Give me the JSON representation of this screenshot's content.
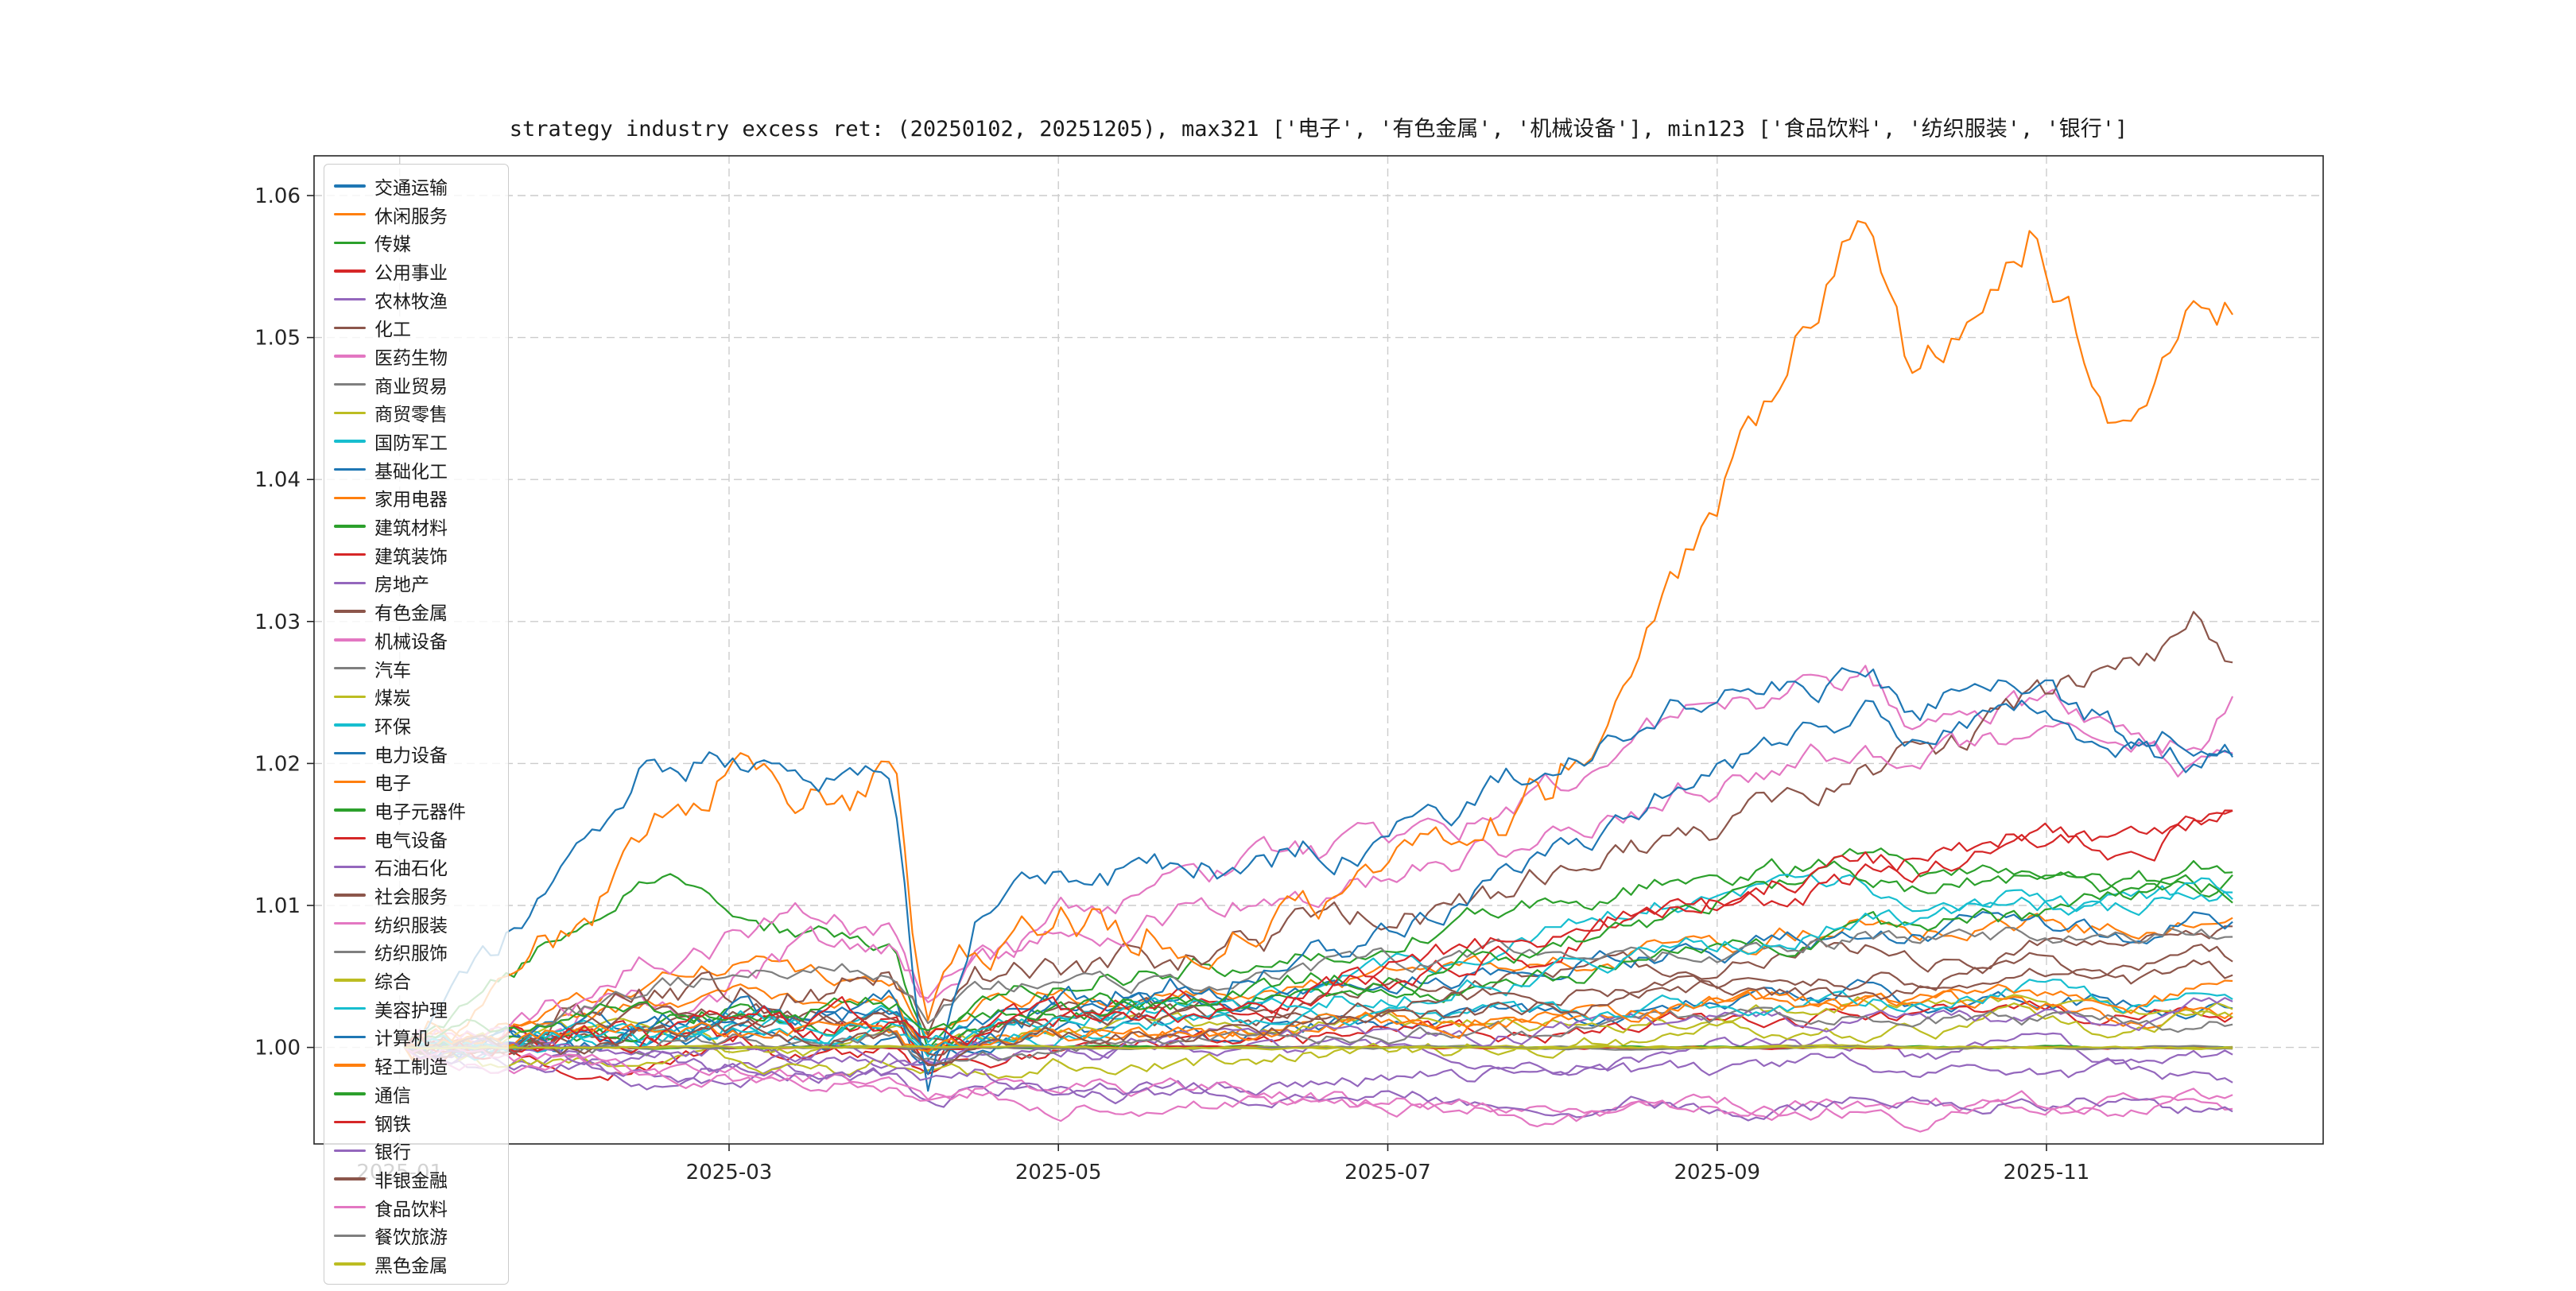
{
  "chart_data": {
    "type": "line",
    "title": "strategy industry excess ret: (20250102, 20251205), max321 ['电子', '有色金属', '机械设备'], min123 ['食品饮料', '纺织服装', '银行']",
    "date_range": [
      "20250102",
      "20251205"
    ],
    "max321": [
      "电子",
      "有色金属",
      "机械设备"
    ],
    "min123": [
      "食品饮料",
      "纺织服装",
      "银行"
    ],
    "grid": true,
    "legend_position": "upper left",
    "colors": {
      "axis": "#262626",
      "grid": "#cccccc",
      "background": "#ffffff"
    },
    "x_axis": {
      "tick_labels": [
        "2025-01",
        "2025-03",
        "2025-05",
        "2025-07",
        "2025-09",
        "2025-11"
      ],
      "tick_months": [
        0,
        2,
        4,
        6,
        8,
        10
      ],
      "range_months": [
        -0.52,
        11.68
      ]
    },
    "y_axis": {
      "tick_labels": [
        "1.00",
        "1.01",
        "1.02",
        "1.03",
        "1.04",
        "1.05",
        "1.06"
      ],
      "tick_values": [
        1.0,
        1.01,
        1.02,
        1.03,
        1.04,
        1.05,
        1.06
      ],
      "range": [
        0.9932,
        1.0628
      ]
    },
    "x_anchor_months": [
      0.03,
      0.5,
      1,
      1.5,
      2,
      2.5,
      3,
      3.2,
      3.5,
      4,
      5,
      6,
      7,
      8,
      8.9,
      9.2,
      9.9,
      10.5,
      10.9,
      11.13
    ],
    "series": [
      {
        "name": "交通运输",
        "color": "#1f77b4",
        "values": [
          1.0,
          1.0,
          1.0,
          1.001,
          1.001,
          1.0,
          1.001,
          0.999,
          1.0,
          1.001,
          1.001,
          1.002,
          1.002,
          1.003,
          1.004,
          1.003,
          1.004,
          1.003,
          1.003,
          1.003
        ]
      },
      {
        "name": "休闲服务",
        "color": "#ff7f0e",
        "values": [
          1.0,
          1.001,
          1.003,
          1.005,
          1.006,
          1.005,
          1.005,
          1.001,
          1.003,
          1.004,
          1.004,
          1.005,
          1.006,
          1.007,
          1.009,
          1.008,
          1.009,
          1.008,
          1.009,
          1.009
        ]
      },
      {
        "name": "传媒",
        "color": "#2ca02c",
        "values": [
          1.0,
          1.003,
          1.008,
          1.012,
          1.01,
          1.008,
          1.008,
          1.0,
          1.004,
          1.005,
          1.006,
          1.008,
          1.01,
          1.012,
          1.013,
          1.012,
          1.013,
          1.011,
          1.012,
          1.012
        ]
      },
      {
        "name": "公用事业",
        "color": "#d62728",
        "values": [
          1.0,
          1.0,
          0.999,
          0.999,
          1.0,
          0.999,
          1.0,
          0.998,
          0.999,
          1.0,
          1.0,
          1.001,
          1.001,
          1.002,
          1.002,
          1.002,
          1.003,
          1.002,
          1.002,
          1.002
        ]
      },
      {
        "name": "农林牧渔",
        "color": "#9467bd",
        "values": [
          1.0,
          0.999,
          0.999,
          0.998,
          0.999,
          0.999,
          0.999,
          0.998,
          0.999,
          0.999,
          1.0,
          1.0,
          0.999,
          1.0,
          1.0,
          0.999,
          1.0,
          0.999,
          0.999,
          0.999
        ]
      },
      {
        "name": "化工",
        "color": "#8c564b",
        "values": [
          1.0,
          1.0,
          1.001,
          1.002,
          1.002,
          1.002,
          1.002,
          1.0,
          1.001,
          1.002,
          1.003,
          1.004,
          1.005,
          1.006,
          1.007,
          1.006,
          1.007,
          1.007,
          1.008,
          1.008
        ]
      },
      {
        "name": "医药生物",
        "color": "#e377c2",
        "values": [
          1.0,
          1.0,
          1.002,
          1.003,
          1.005,
          1.007,
          1.007,
          1.004,
          1.006,
          1.009,
          1.012,
          1.014,
          1.018,
          1.024,
          1.026,
          1.023,
          1.024,
          1.021,
          1.02,
          1.022
        ]
      },
      {
        "name": "商业贸易",
        "color": "#7f7f7f",
        "values": [
          1.0,
          1.0,
          1.0,
          1.0,
          1.0,
          1.0,
          1.0,
          1.0,
          1.0,
          1.0,
          1.0,
          1.0,
          1.0,
          1.0,
          1.0,
          1.0,
          1.0,
          1.0,
          1.0,
          1.0
        ]
      },
      {
        "name": "商贸零售",
        "color": "#bcbd22",
        "values": [
          1.0,
          1.0,
          1.001,
          1.001,
          1.0,
          1.0,
          1.001,
          0.999,
          1.0,
          1.001,
          1.001,
          1.002,
          1.002,
          1.002,
          1.003,
          1.003,
          1.003,
          1.002,
          1.003,
          1.003
        ]
      },
      {
        "name": "国防军工",
        "color": "#17becf",
        "values": [
          1.0,
          1.0,
          1.001,
          1.001,
          1.002,
          1.001,
          1.002,
          1.0,
          1.001,
          1.002,
          1.003,
          1.005,
          1.008,
          1.011,
          1.012,
          1.01,
          1.011,
          1.01,
          1.011,
          1.011
        ]
      },
      {
        "name": "基础化工",
        "color": "#1f77b4",
        "values": [
          1.0,
          1.0,
          1.001,
          1.002,
          1.002,
          1.002,
          1.003,
          1.0,
          1.002,
          1.003,
          1.003,
          1.004,
          1.006,
          1.007,
          1.008,
          1.008,
          1.009,
          1.008,
          1.009,
          1.009
        ]
      },
      {
        "name": "家用电器",
        "color": "#ff7f0e",
        "values": [
          1.0,
          1.001,
          1.002,
          1.003,
          1.004,
          1.003,
          1.003,
          0.999,
          1.001,
          1.001,
          1.001,
          1.002,
          1.002,
          1.003,
          1.003,
          1.003,
          1.003,
          1.002,
          1.002,
          1.002
        ]
      },
      {
        "name": "建筑材料",
        "color": "#2ca02c",
        "values": [
          1.0,
          1.0,
          1.001,
          1.001,
          1.002,
          1.001,
          1.002,
          1.0,
          1.001,
          1.002,
          1.003,
          1.004,
          1.005,
          1.007,
          1.008,
          1.008,
          1.009,
          1.01,
          1.011,
          1.011
        ]
      },
      {
        "name": "建筑装饰",
        "color": "#d62728",
        "values": [
          1.0,
          1.0,
          1.001,
          1.001,
          1.001,
          1.001,
          1.002,
          0.999,
          1.001,
          1.002,
          1.003,
          1.005,
          1.007,
          1.01,
          1.012,
          1.012,
          1.014,
          1.015,
          1.016,
          1.017
        ]
      },
      {
        "name": "房地产",
        "color": "#9467bd",
        "values": [
          1.0,
          0.999,
          0.999,
          0.998,
          0.998,
          0.998,
          0.998,
          0.996,
          0.997,
          0.997,
          0.997,
          0.998,
          0.998,
          0.998,
          0.999,
          0.998,
          0.998,
          0.998,
          0.998,
          0.998
        ]
      },
      {
        "name": "有色金属",
        "color": "#8c564b",
        "values": [
          1.0,
          1.0,
          1.002,
          1.003,
          1.004,
          1.004,
          1.005,
          1.001,
          1.004,
          1.005,
          1.007,
          1.009,
          1.012,
          1.016,
          1.019,
          1.02,
          1.024,
          1.027,
          1.03,
          1.027
        ]
      },
      {
        "name": "机械设备",
        "color": "#e377c2",
        "values": [
          1.0,
          1.001,
          1.003,
          1.006,
          1.008,
          1.009,
          1.008,
          1.003,
          1.006,
          1.008,
          1.01,
          1.012,
          1.015,
          1.019,
          1.021,
          1.02,
          1.022,
          1.02,
          1.021,
          1.024
        ]
      },
      {
        "name": "汽车",
        "color": "#7f7f7f",
        "values": [
          1.0,
          1.001,
          1.002,
          1.004,
          1.005,
          1.006,
          1.005,
          1.002,
          1.004,
          1.005,
          1.005,
          1.006,
          1.007,
          1.007,
          1.008,
          1.008,
          1.008,
          1.007,
          1.008,
          1.008
        ]
      },
      {
        "name": "煤炭",
        "color": "#bcbd22",
        "values": [
          1.0,
          0.999,
          0.999,
          0.999,
          0.999,
          0.998,
          0.999,
          0.998,
          0.998,
          0.999,
          0.999,
          1.0,
          1.0,
          1.001,
          1.001,
          1.001,
          1.002,
          1.001,
          1.002,
          1.002
        ]
      },
      {
        "name": "环保",
        "color": "#17becf",
        "values": [
          1.0,
          1.0,
          1.001,
          1.001,
          1.002,
          1.002,
          1.002,
          1.0,
          1.001,
          1.002,
          1.003,
          1.004,
          1.005,
          1.007,
          1.009,
          1.009,
          1.01,
          1.01,
          1.011,
          1.011
        ]
      },
      {
        "name": "电力设备",
        "color": "#1f77b4",
        "values": [
          1.0,
          0.999,
          1.0,
          1.001,
          1.002,
          1.001,
          1.002,
          0.998,
          1.001,
          1.003,
          1.005,
          1.008,
          1.013,
          1.02,
          1.024,
          1.022,
          1.024,
          1.021,
          1.02,
          1.021
        ]
      },
      {
        "name": "电子",
        "color": "#ff7f0e",
        "values": [
          1.0,
          1.002,
          1.008,
          1.016,
          1.02,
          1.018,
          1.019,
          1.0,
          1.006,
          1.008,
          1.009,
          1.011,
          1.018,
          1.038,
          1.0595,
          1.046,
          1.058,
          1.044,
          1.055,
          1.053
        ]
      },
      {
        "name": "电子元器件",
        "color": "#2ca02c",
        "values": [
          1.0,
          1.0,
          1.0,
          1.0,
          1.0,
          1.0,
          1.0,
          1.0,
          1.0,
          1.0,
          1.0,
          1.0,
          1.0,
          1.0,
          1.0,
          1.0,
          1.0,
          1.0,
          1.0,
          1.0
        ]
      },
      {
        "name": "电气设备",
        "color": "#d62728",
        "values": [
          1.0,
          1.0,
          1.0,
          1.0,
          1.0,
          1.0,
          1.0,
          1.0,
          1.0,
          1.0,
          1.0,
          1.0,
          1.0,
          1.0,
          1.0,
          1.0,
          1.0,
          1.0,
          1.0,
          1.0
        ]
      },
      {
        "name": "石油石化",
        "color": "#9467bd",
        "values": [
          1.0,
          1.0,
          1.0,
          1.0,
          1.0,
          1.0,
          1.0,
          0.999,
          1.0,
          1.0,
          1.001,
          1.001,
          1.001,
          1.002,
          1.002,
          1.002,
          1.002,
          1.002,
          1.003,
          1.003
        ]
      },
      {
        "name": "社会服务",
        "color": "#8c564b",
        "values": [
          1.0,
          1.0,
          1.001,
          1.002,
          1.002,
          1.002,
          1.002,
          1.0,
          1.001,
          1.002,
          1.002,
          1.003,
          1.004,
          1.004,
          1.005,
          1.005,
          1.006,
          1.005,
          1.006,
          1.006
        ]
      },
      {
        "name": "纺织服装",
        "color": "#e377c2",
        "values": [
          1.0,
          0.999,
          0.999,
          0.998,
          0.998,
          0.998,
          0.997,
          0.996,
          0.997,
          0.997,
          0.997,
          0.996,
          0.996,
          0.996,
          0.996,
          0.996,
          0.996,
          0.996,
          0.996,
          0.996
        ]
      },
      {
        "name": "纺织服饰",
        "color": "#7f7f7f",
        "values": [
          1.0,
          1.0,
          1.0,
          1.0,
          1.001,
          1.0,
          1.001,
          0.999,
          1.0,
          1.0,
          1.001,
          1.001,
          1.001,
          1.002,
          1.002,
          1.002,
          1.002,
          1.002,
          1.002,
          1.002
        ]
      },
      {
        "name": "综合",
        "color": "#bcbd22",
        "values": [
          1.0,
          1.0,
          1.0,
          1.0,
          1.0,
          1.0,
          1.0,
          1.0,
          1.0,
          1.0,
          1.0,
          1.0,
          1.0,
          1.0,
          1.0,
          1.0,
          1.0,
          1.0,
          1.0,
          1.0
        ]
      },
      {
        "name": "美容护理",
        "color": "#17becf",
        "values": [
          1.0,
          1.0,
          1.001,
          1.001,
          1.001,
          1.001,
          1.001,
          1.0,
          1.001,
          1.001,
          1.002,
          1.002,
          1.002,
          1.003,
          1.003,
          1.003,
          1.004,
          1.003,
          1.004,
          1.004
        ]
      },
      {
        "name": "计算机",
        "color": "#1f77b4",
        "values": [
          1.0,
          1.005,
          1.012,
          1.02,
          1.021,
          1.017,
          1.019,
          0.996,
          1.008,
          1.012,
          1.013,
          1.015,
          1.02,
          1.025,
          1.027,
          1.024,
          1.026,
          1.022,
          1.023,
          1.021
        ]
      },
      {
        "name": "轻工制造",
        "color": "#ff7f0e",
        "values": [
          1.0,
          1.0,
          1.001,
          1.001,
          1.001,
          1.001,
          1.001,
          0.999,
          1.0,
          1.001,
          1.001,
          1.002,
          1.002,
          1.003,
          1.003,
          1.003,
          1.004,
          1.003,
          1.004,
          1.004
        ]
      },
      {
        "name": "通信",
        "color": "#2ca02c",
        "values": [
          1.0,
          1.001,
          1.002,
          1.003,
          1.003,
          1.003,
          1.003,
          1.0,
          1.002,
          1.003,
          1.004,
          1.005,
          1.007,
          1.01,
          1.012,
          1.011,
          1.012,
          1.011,
          1.013,
          1.013
        ]
      },
      {
        "name": "钢铁",
        "color": "#d62728",
        "values": [
          1.0,
          1.0,
          1.001,
          1.001,
          1.002,
          1.002,
          1.002,
          1.0,
          1.001,
          1.002,
          1.003,
          1.005,
          1.008,
          1.011,
          1.013,
          1.013,
          1.015,
          1.014,
          1.016,
          1.017
        ]
      },
      {
        "name": "银行",
        "color": "#9467bd",
        "values": [
          1.0,
          1.0,
          0.999,
          0.999,
          0.998,
          0.998,
          0.998,
          0.997,
          0.998,
          0.997,
          0.997,
          0.997,
          0.996,
          0.996,
          0.996,
          0.996,
          0.996,
          0.996,
          0.996,
          0.996
        ]
      },
      {
        "name": "非银金融",
        "color": "#8c564b",
        "values": [
          1.0,
          1.0,
          1.0,
          1.001,
          1.001,
          1.0,
          1.001,
          0.999,
          1.0,
          1.001,
          1.001,
          1.002,
          1.003,
          1.004,
          1.004,
          1.004,
          1.005,
          1.004,
          1.005,
          1.005
        ]
      },
      {
        "name": "食品饮料",
        "color": "#e377c2",
        "values": [
          1.0,
          0.999,
          0.999,
          0.998,
          0.998,
          0.998,
          0.997,
          0.996,
          0.997,
          0.996,
          0.996,
          0.996,
          0.995,
          0.995,
          0.996,
          0.995,
          0.996,
          0.995,
          0.996,
          0.996
        ]
      },
      {
        "name": "餐饮旅游",
        "color": "#7f7f7f",
        "values": [
          1.0,
          1.0,
          1.0,
          1.0,
          1.0,
          1.0,
          1.0,
          1.0,
          1.0,
          1.0,
          1.0,
          1.0,
          1.0,
          1.0,
          1.0,
          1.0,
          1.0,
          1.0,
          1.0,
          1.0
        ]
      },
      {
        "name": "黑色金属",
        "color": "#bcbd22",
        "values": [
          1.0,
          1.0,
          1.0,
          1.0,
          1.0,
          1.0,
          1.0,
          1.0,
          1.0,
          1.0,
          1.0,
          1.0,
          1.0,
          1.0,
          1.0,
          1.0,
          1.0,
          1.0,
          1.0,
          1.0
        ]
      }
    ]
  }
}
